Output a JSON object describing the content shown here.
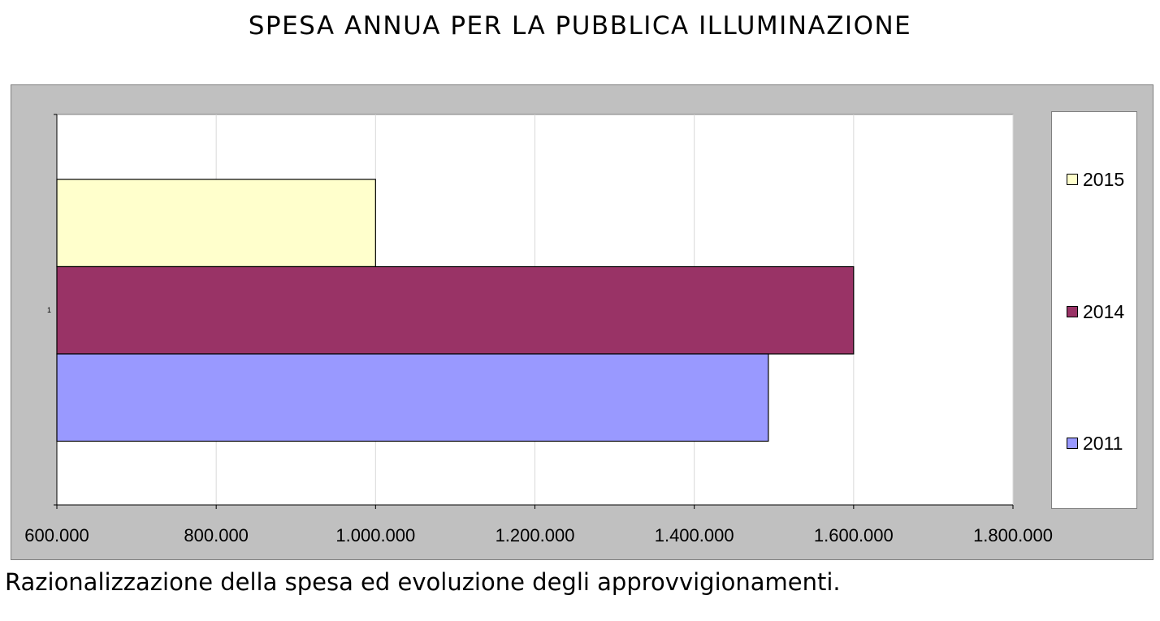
{
  "header": {
    "title": "SPESA ANNUA PER LA PUBBLICA ILLUMINAZIONE"
  },
  "footer": {
    "caption": "Razionalizzazione della spesa ed evoluzione degli approvvigionamenti."
  },
  "chart_data": {
    "type": "bar",
    "orientation": "horizontal",
    "title": "SPESA ANNUA PER LA PUBBLICA ILLUMINAZIONE",
    "categories": [
      "1"
    ],
    "series": [
      {
        "name": "2015",
        "values": [
          1000000
        ],
        "color": "#ffffcc"
      },
      {
        "name": "2014",
        "values": [
          1600000
        ],
        "color": "#993366"
      },
      {
        "name": "2011",
        "values": [
          1493000
        ],
        "color": "#9999ff"
      }
    ],
    "xlim": [
      600000,
      1800000
    ],
    "x_ticks": [
      600000,
      800000,
      1000000,
      1200000,
      1400000,
      1600000,
      1800000
    ],
    "x_tick_labels": [
      "600.000",
      "800.000",
      "1.000.000",
      "1.200.000",
      "1.400.000",
      "1.600.000",
      "1.800.000"
    ],
    "grid": true,
    "legend_position": "right",
    "plot_background": "#ffffff",
    "frame_background": "#c0c0c0"
  }
}
